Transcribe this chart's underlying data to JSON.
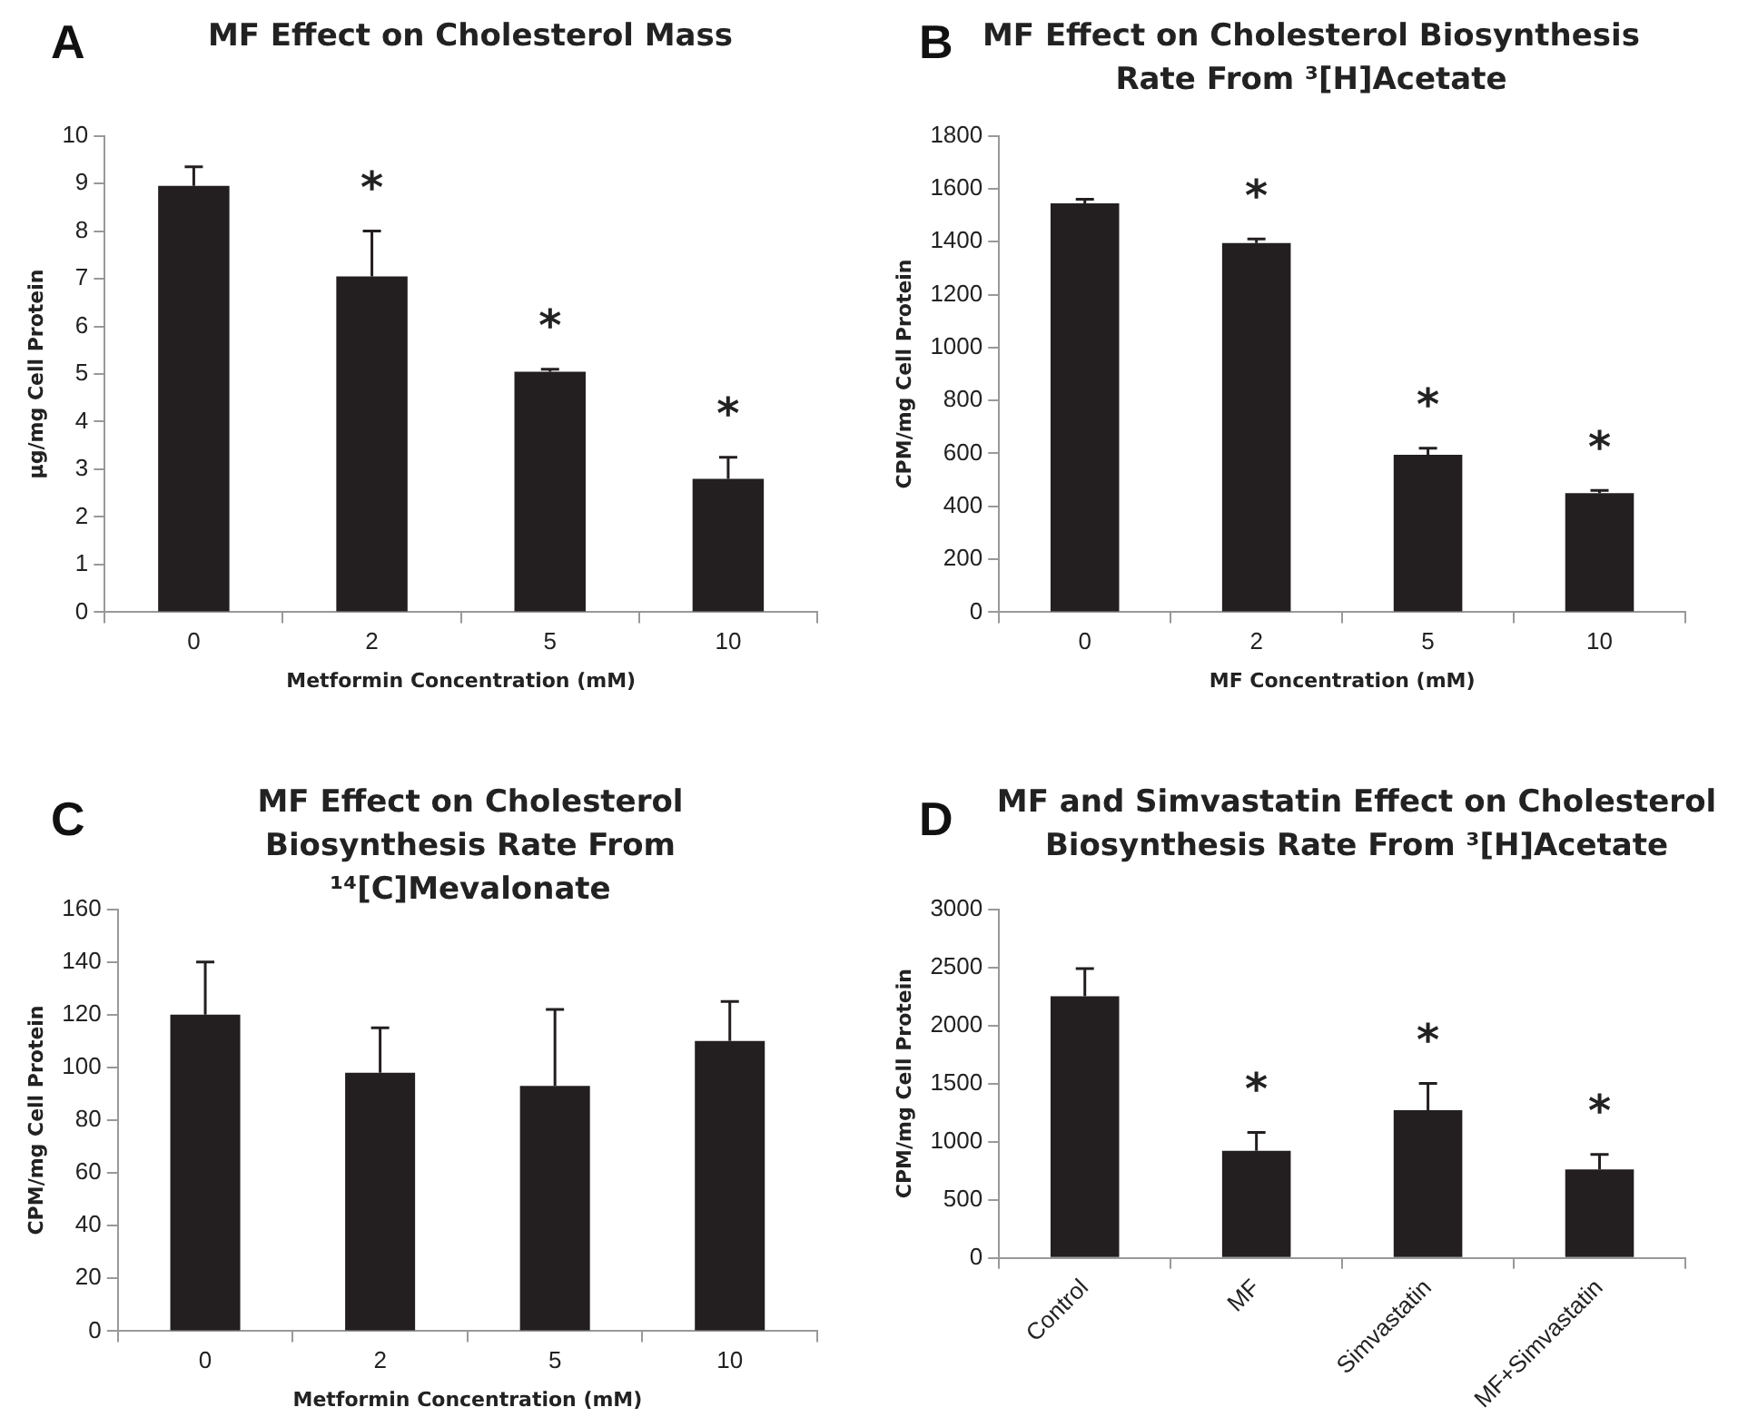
{
  "chart_data": [
    {
      "type": "bar",
      "title": "MF Effect on Cholesterol Mass",
      "xlabel": "Metformin Concentration (mM)",
      "ylabel": "µg/mg Cell Protein",
      "categories": [
        "0",
        "2",
        "5",
        "10"
      ],
      "values": [
        8.95,
        7.05,
        5.05,
        2.8
      ],
      "errors": [
        [
          8.95,
          9.35
        ],
        [
          7.05,
          8.0
        ],
        [
          5.05,
          5.1
        ],
        [
          2.8,
          3.25
        ]
      ],
      "color": "#231f20",
      "ylim": [
        0,
        10
      ],
      "yticks": [
        0,
        1,
        2,
        3,
        4,
        5,
        6,
        7,
        8,
        9,
        10
      ],
      "grid": false,
      "legend": false,
      "annotations": [
        "A",
        {
          "text": "*",
          "x": "2",
          "y": 7.05
        },
        {
          "text": "*",
          "x": "5",
          "y": 5.05
        },
        {
          "text": "*",
          "x": "10",
          "y": 2.8
        }
      ]
    },
    {
      "type": "bar",
      "title": "MF Effect on Cholesterol Biosynthesis Rate From ³[H]Acetate",
      "xlabel": "MF Concentration (mM)",
      "ylabel": "CPM/mg Cell Protein",
      "categories": [
        "0",
        "2",
        "5",
        "10"
      ],
      "values": [
        1545,
        1395,
        595,
        450
      ],
      "errors": [
        [
          1545,
          1560
        ],
        [
          1395,
          1410
        ],
        [
          595,
          620
        ],
        [
          450,
          460
        ]
      ],
      "color": "#231f20",
      "ylim": [
        0,
        1800
      ],
      "yticks": [
        0,
        200,
        400,
        600,
        800,
        1000,
        1200,
        1400,
        1600,
        1800
      ],
      "grid": false,
      "legend": false,
      "annotations": [
        "B",
        {
          "text": "*",
          "x": "2",
          "y": 1395
        },
        {
          "text": "*",
          "x": "5",
          "y": 595
        },
        {
          "text": "*",
          "x": "10",
          "y": 450
        }
      ]
    },
    {
      "type": "bar",
      "title": "MF Effect on Cholesterol Biosynthesis Rate From ¹⁴[C]Mevalonate",
      "xlabel": "Metformin Concentration (mM)",
      "ylabel": "CPM/mg Cell Protein",
      "categories": [
        "0",
        "2",
        "5",
        "10"
      ],
      "values": [
        120,
        98,
        93,
        110
      ],
      "errors": [
        [
          120,
          140
        ],
        [
          98,
          115
        ],
        [
          93,
          122
        ],
        [
          110,
          125
        ]
      ],
      "color": "#231f20",
      "ylim": [
        0,
        160
      ],
      "yticks": [
        0,
        20,
        40,
        60,
        80,
        100,
        120,
        140,
        160
      ],
      "grid": false,
      "legend": false,
      "annotations": [
        "C"
      ]
    },
    {
      "type": "bar",
      "title": "MF and Simvastatin Effect on Cholesterol Biosynthesis Rate From ³[H]Acetate",
      "ylabel": "CPM/mg Cell Protein",
      "categories": [
        "Control",
        "MF",
        "Simvastatin",
        "MF+Simvastatin"
      ],
      "values": [
        2250,
        920,
        1270,
        760
      ],
      "errors": [
        [
          2250,
          2490
        ],
        [
          920,
          1080
        ],
        [
          1270,
          1500
        ],
        [
          760,
          890
        ]
      ],
      "color": "#231f20",
      "ylim": [
        0,
        3000
      ],
      "yticks": [
        0,
        500,
        1000,
        1500,
        2000,
        2500,
        3000
      ],
      "grid": false,
      "legend": false,
      "annotations": [
        "D",
        {
          "text": "*",
          "x": "MF",
          "y": 920
        },
        {
          "text": "*",
          "x": "Simvastatin",
          "y": 1270
        },
        {
          "text": "*",
          "x": "MF+Simvastatin",
          "y": 760
        }
      ]
    }
  ]
}
